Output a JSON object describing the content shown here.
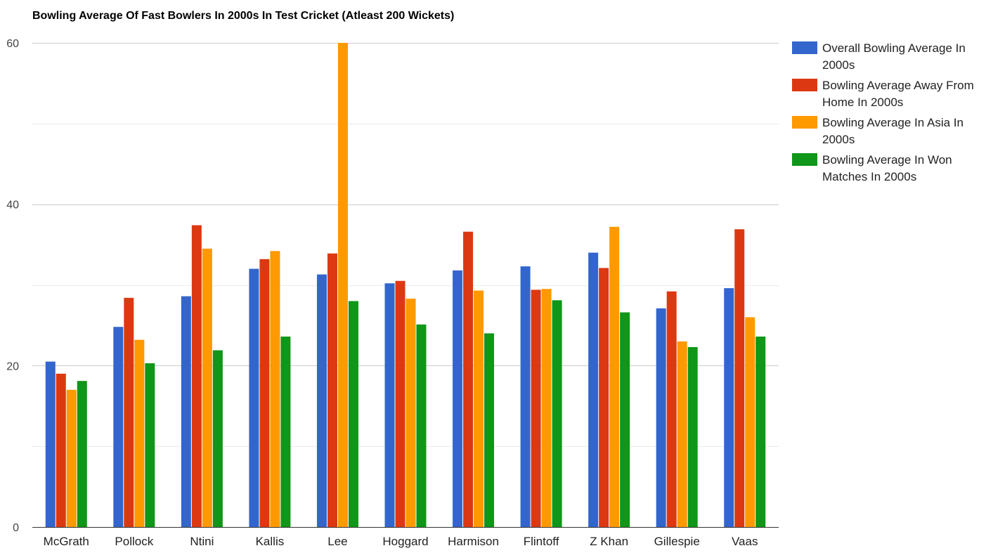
{
  "chart_data": {
    "type": "bar",
    "title": "Bowling Average Of Fast Bowlers In 2000s In Test Cricket (Atleast 200 Wickets)",
    "xlabel": "",
    "ylabel": "",
    "ylim": [
      0,
      60
    ],
    "yticks": [
      0,
      20,
      40,
      60
    ],
    "grid": true,
    "legend_position": "right",
    "categories": [
      "McGrath",
      "Pollock",
      "Ntini",
      "Kallis",
      "Lee",
      "Hoggard",
      "Harmison",
      "Flintoff",
      "Z Khan",
      "Gillespie",
      "Vaas"
    ],
    "series": [
      {
        "name": "Overall Bowling Average In 2000s",
        "legend_lines": [
          "Overall Bowling Average In",
          "2000s"
        ],
        "color": "#3366cc",
        "values": [
          20.5,
          24.8,
          28.6,
          32.0,
          31.3,
          30.2,
          31.8,
          32.3,
          34.0,
          27.1,
          29.6
        ]
      },
      {
        "name": "Bowling Average Away From Home In 2000s",
        "legend_lines": [
          "Bowling Average Away From",
          "Home In 2000s"
        ],
        "color": "#dc3912",
        "values": [
          19.0,
          28.4,
          37.4,
          33.2,
          33.9,
          30.5,
          36.6,
          29.4,
          32.1,
          29.2,
          36.9
        ]
      },
      {
        "name": "Bowling Average In Asia In 2000s",
        "legend_lines": [
          "Bowling Average In Asia In",
          "2000s"
        ],
        "color": "#ff9900",
        "values": [
          17.0,
          23.2,
          34.5,
          34.2,
          60.0,
          28.3,
          29.3,
          29.5,
          37.2,
          23.0,
          26.0
        ]
      },
      {
        "name": "Bowling Average In Won Matches In 2000s",
        "legend_lines": [
          "Bowling Average In Won",
          "Matches In 2000s"
        ],
        "color": "#109618",
        "values": [
          18.1,
          20.3,
          21.9,
          23.6,
          28.0,
          25.1,
          24.0,
          28.1,
          26.6,
          22.3,
          23.6
        ]
      }
    ]
  }
}
